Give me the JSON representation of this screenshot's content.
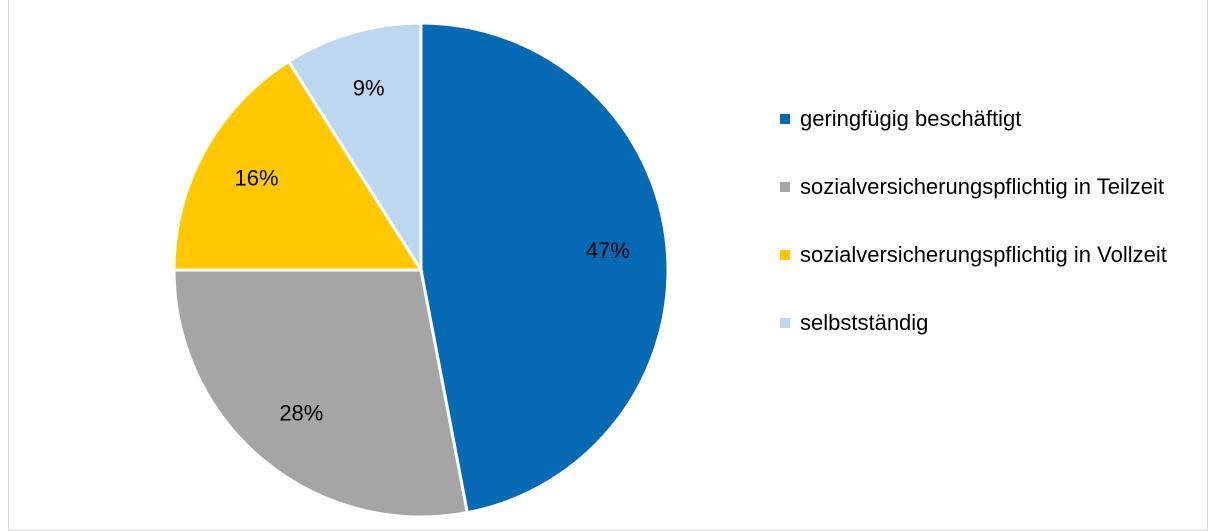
{
  "chart_data": {
    "type": "pie",
    "categories": [
      "geringfügig beschäftigt",
      "sozialversicherungspflichtig in Teilzeit",
      "sozialversicherungspflichtig in Vollzeit",
      "selbstständig"
    ],
    "values": [
      47,
      28,
      16,
      9
    ],
    "value_labels": [
      "47%",
      "28%",
      "16%",
      "9%"
    ],
    "colors": [
      "#0569b4",
      "#a5a5a5",
      "#ffc800",
      "#bdd7ee"
    ],
    "legend": "right"
  }
}
